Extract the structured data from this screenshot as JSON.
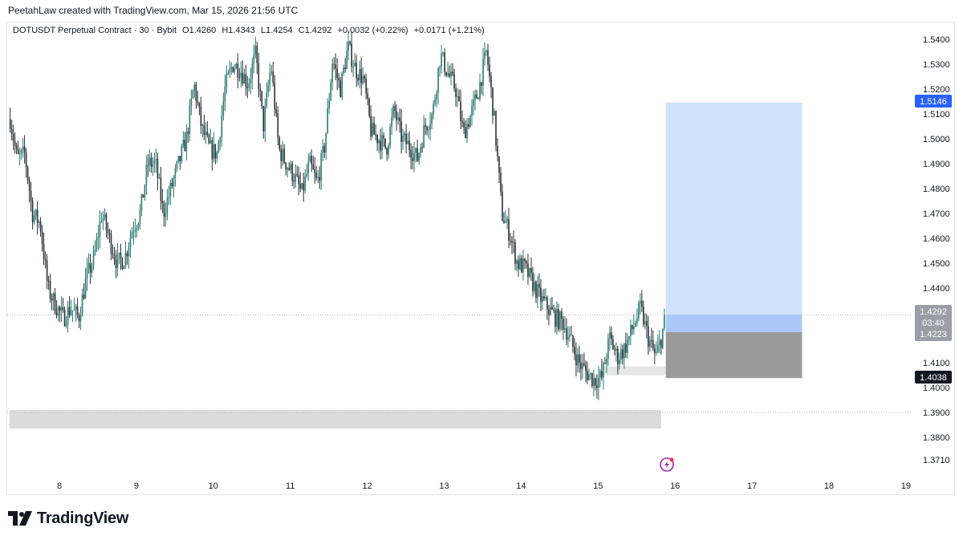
{
  "header": {
    "attribution": "PeetahLaw created with TradingView.com, Mar 15, 2026 21:56 UTC"
  },
  "legend": {
    "symbol": "DOTUSDT Perpetual Contract · 30 · Bybit",
    "open": "O1.4260",
    "high": "H1.4343",
    "low": "L1.4254",
    "close": "C1.4292",
    "change": "+0.0032 (+0.22%)",
    "change2": "+0.0171 (+1.21%)"
  },
  "price_tags": {
    "target": "1.5146",
    "current": "1.4292",
    "countdown": "03:40",
    "entry": "1.4223",
    "stop": "1.4038"
  },
  "brand": {
    "name": "TradingView"
  },
  "colors": {
    "up": "#2a7a73",
    "down": "#2b2f36",
    "target_zone": "#cfe1fb",
    "stop_zone": "#9a9a9a",
    "target_tag": "#2962ff",
    "stop_tag": "#131722"
  },
  "chart_data": {
    "type": "candlestick",
    "symbol": "DOTUSDT",
    "interval": "30",
    "ylim": [
      1.365,
      1.548
    ],
    "y_ticks": [
      "1.5400",
      "1.5300",
      "1.5200",
      "1.5100",
      "1.5000",
      "1.4900",
      "1.4800",
      "1.4700",
      "1.4600",
      "1.4500",
      "1.4400",
      "1.4100",
      "1.4000",
      "1.3900",
      "1.3800",
      "1.3710"
    ],
    "x_ticks": [
      "8",
      "9",
      "10",
      "11",
      "12",
      "13",
      "14",
      "15",
      "16",
      "17",
      "18",
      "19"
    ],
    "x_tick_days": [
      8,
      9,
      10,
      11,
      12,
      13,
      14,
      15,
      16,
      17,
      18,
      19
    ],
    "xlim_days": [
      7.35,
      19.0
    ],
    "price_path": [
      [
        7.36,
        1.508
      ],
      [
        7.45,
        1.492
      ],
      [
        7.55,
        1.494
      ],
      [
        7.65,
        1.47
      ],
      [
        7.75,
        1.466
      ],
      [
        7.85,
        1.44
      ],
      [
        7.95,
        1.433
      ],
      [
        8.05,
        1.428
      ],
      [
        8.15,
        1.432
      ],
      [
        8.25,
        1.428
      ],
      [
        8.35,
        1.444
      ],
      [
        8.45,
        1.452
      ],
      [
        8.55,
        1.47
      ],
      [
        8.65,
        1.46
      ],
      [
        8.75,
        1.45
      ],
      [
        8.85,
        1.452
      ],
      [
        8.95,
        1.464
      ],
      [
        9.05,
        1.47
      ],
      [
        9.15,
        1.49
      ],
      [
        9.25,
        1.49
      ],
      [
        9.35,
        1.47
      ],
      [
        9.45,
        1.48
      ],
      [
        9.55,
        1.49
      ],
      [
        9.65,
        1.5
      ],
      [
        9.75,
        1.522
      ],
      [
        9.85,
        1.504
      ],
      [
        9.95,
        1.496
      ],
      [
        10.05,
        1.494
      ],
      [
        10.15,
        1.52
      ],
      [
        10.25,
        1.53
      ],
      [
        10.35,
        1.528
      ],
      [
        10.45,
        1.522
      ],
      [
        10.55,
        1.534
      ],
      [
        10.65,
        1.505
      ],
      [
        10.75,
        1.53
      ],
      [
        10.85,
        1.496
      ],
      [
        10.95,
        1.49
      ],
      [
        11.05,
        1.485
      ],
      [
        11.15,
        1.478
      ],
      [
        11.25,
        1.49
      ],
      [
        11.35,
        1.482
      ],
      [
        11.45,
        1.498
      ],
      [
        11.55,
        1.532
      ],
      [
        11.65,
        1.52
      ],
      [
        11.75,
        1.537
      ],
      [
        11.85,
        1.528
      ],
      [
        11.95,
        1.524
      ],
      [
        12.05,
        1.503
      ],
      [
        12.15,
        1.5
      ],
      [
        12.25,
        1.496
      ],
      [
        12.35,
        1.512
      ],
      [
        12.45,
        1.5
      ],
      [
        12.55,
        1.497
      ],
      [
        12.65,
        1.492
      ],
      [
        12.75,
        1.505
      ],
      [
        12.85,
        1.51
      ],
      [
        12.95,
        1.534
      ],
      [
        13.05,
        1.526
      ],
      [
        13.15,
        1.52
      ],
      [
        13.25,
        1.502
      ],
      [
        13.35,
        1.51
      ],
      [
        13.45,
        1.52
      ],
      [
        13.55,
        1.535
      ],
      [
        13.65,
        1.508
      ],
      [
        13.75,
        1.47
      ],
      [
        13.85,
        1.462
      ],
      [
        13.95,
        1.45
      ],
      [
        14.05,
        1.448
      ],
      [
        14.15,
        1.442
      ],
      [
        14.25,
        1.436
      ],
      [
        14.35,
        1.432
      ],
      [
        14.45,
        1.428
      ],
      [
        14.55,
        1.426
      ],
      [
        14.65,
        1.418
      ],
      [
        14.75,
        1.41
      ],
      [
        14.85,
        1.406
      ],
      [
        14.95,
        1.403
      ],
      [
        15.05,
        1.404
      ],
      [
        15.15,
        1.42
      ],
      [
        15.25,
        1.412
      ],
      [
        15.35,
        1.416
      ],
      [
        15.45,
        1.424
      ],
      [
        15.55,
        1.432
      ],
      [
        15.65,
        1.42
      ],
      [
        15.75,
        1.412
      ],
      [
        15.82,
        1.42
      ],
      [
        15.88,
        1.4292
      ]
    ],
    "annotations": {
      "target_zone": {
        "from_day": 15.88,
        "to_day": 17.65,
        "top": 1.5146,
        "bottom": 1.4292
      },
      "entry_zone": {
        "from_day": 15.88,
        "to_day": 17.65,
        "top": 1.4292,
        "bottom": 1.4223
      },
      "stop_zone": {
        "from_day": 15.88,
        "to_day": 17.65,
        "top": 1.4223,
        "bottom": 1.4038
      },
      "small_zone": {
        "from_day": 15.08,
        "to_day": 15.88,
        "top": 1.4085,
        "bottom": 1.405
      },
      "demand_zone": {
        "from_day": 7.35,
        "to_day": 15.82,
        "top": 1.391,
        "bottom": 1.3835
      },
      "current_price_line": 1.4292,
      "low_line": 1.39
    }
  }
}
